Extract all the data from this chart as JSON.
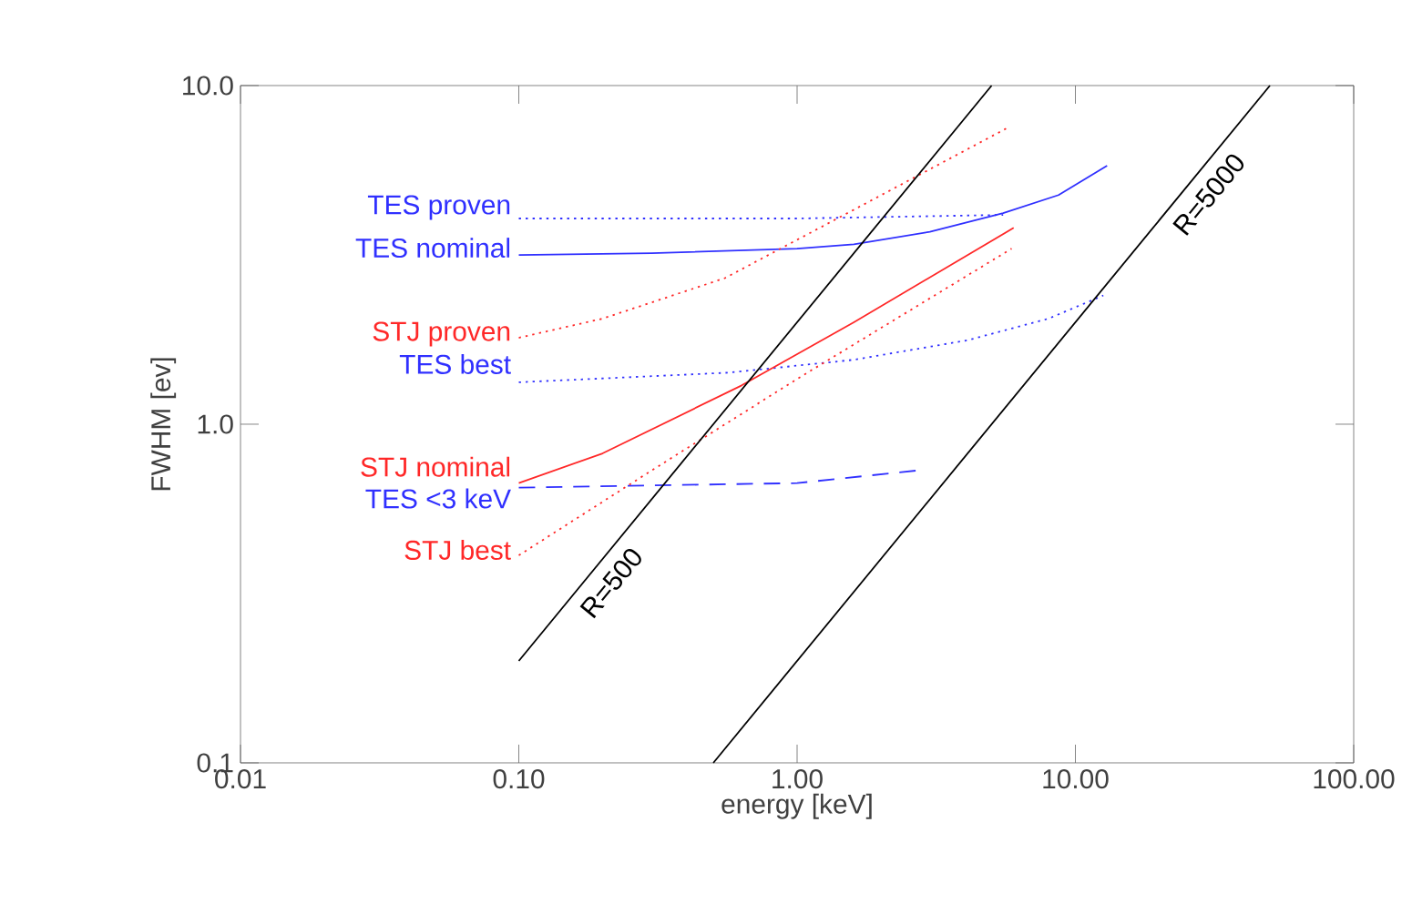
{
  "chart_data": {
    "type": "line",
    "xlabel": "energy [keV]",
    "ylabel": "FWHM [ev]",
    "log": "xy",
    "xlim": [
      0.01,
      100
    ],
    "ylim": [
      0.1,
      10
    ],
    "xticks": [
      {
        "value": 0.01,
        "label": "0.01"
      },
      {
        "value": 0.1,
        "label": "0.10"
      },
      {
        "value": 1,
        "label": "1.00"
      },
      {
        "value": 10,
        "label": "10.00"
      },
      {
        "value": 100,
        "label": "100.00"
      }
    ],
    "yticks": [
      0.1,
      {
        "value": 1,
        "label": "1.0"
      },
      {
        "value": 10,
        "label": "10.0"
      }
    ],
    "grid": false,
    "series": [
      {
        "name": "TES proven",
        "color": "#3030ff",
        "line_style": "dotted",
        "x": [
          0.1,
          1,
          5.5
        ],
        "values": [
          4.05,
          4.05,
          4.15
        ]
      },
      {
        "name": "TES nominal",
        "color": "#3030ff",
        "line_style": "solid",
        "x": [
          0.1,
          0.3,
          1,
          1.6,
          3,
          5.5,
          8.7,
          13
        ],
        "values": [
          3.16,
          3.2,
          3.3,
          3.4,
          3.7,
          4.2,
          4.75,
          5.8
        ]
      },
      {
        "name": "STJ proven",
        "color": "#ff2828",
        "line_style": "dotted",
        "x": [
          0.1,
          0.2,
          0.55,
          1.6,
          5.7
        ],
        "values": [
          1.8,
          2.05,
          2.7,
          4.3,
          7.5
        ]
      },
      {
        "name": "TES best",
        "color": "#3030ff",
        "line_style": "dotted",
        "x": [
          0.1,
          0.57,
          1.6,
          4.1,
          8,
          12.6
        ],
        "values": [
          1.33,
          1.42,
          1.55,
          1.77,
          2.05,
          2.4
        ]
      },
      {
        "name": "STJ nominal",
        "color": "#ff2828",
        "line_style": "solid",
        "x": [
          0.1,
          0.2,
          0.63,
          1.6,
          6
        ],
        "values": [
          0.67,
          0.82,
          1.3,
          2.0,
          3.8
        ]
      },
      {
        "name": "TES <3 keV",
        "color": "#3030ff",
        "line_style": "dashed",
        "x": [
          0.1,
          1,
          2.7
        ],
        "values": [
          0.65,
          0.67,
          0.73
        ]
      },
      {
        "name": "STJ best",
        "color": "#ff2828",
        "line_style": "dotted",
        "x": [
          0.1,
          0.3,
          1,
          5.9
        ],
        "values": [
          0.41,
          0.73,
          1.36,
          3.3
        ]
      },
      {
        "name": "R=500",
        "color": "#000000",
        "line_style": "solid",
        "x": [
          0.1,
          5
        ],
        "values": [
          0.2,
          10
        ]
      },
      {
        "name": "R=5000",
        "color": "#000000",
        "line_style": "solid",
        "x": [
          0.5,
          50
        ],
        "values": [
          0.1,
          10
        ]
      }
    ]
  }
}
